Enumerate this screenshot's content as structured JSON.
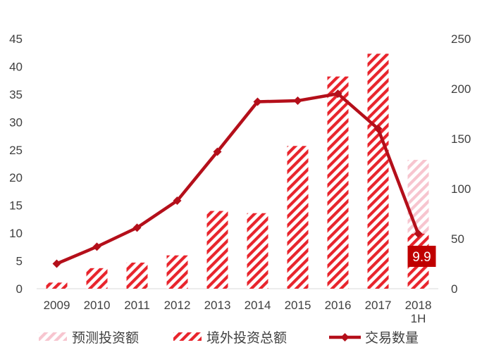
{
  "chart_data": {
    "type": "bar+line",
    "categories": [
      "2009",
      "2010",
      "2011",
      "2012",
      "2013",
      "2014",
      "2015",
      "2016",
      "2017",
      "2018\n1H"
    ],
    "series": [
      {
        "name": "预测投资额",
        "kind": "bar",
        "axis": "left",
        "values": [
          null,
          null,
          null,
          null,
          null,
          null,
          null,
          null,
          null,
          23.2
        ]
      },
      {
        "name": "境外投资总额",
        "kind": "bar",
        "axis": "left",
        "values": [
          1.1,
          3.7,
          4.7,
          6.0,
          14.0,
          13.6,
          25.7,
          38.2,
          42.3,
          9.9
        ]
      },
      {
        "name": "交易数量",
        "kind": "line",
        "axis": "right",
        "values": [
          25,
          42,
          61,
          88,
          137,
          187,
          188,
          195,
          160,
          55
        ]
      }
    ],
    "y_left": {
      "min": 0,
      "max": 45,
      "ticks": [
        0,
        5,
        10,
        15,
        20,
        25,
        30,
        35,
        40,
        45
      ]
    },
    "y_right": {
      "min": 0,
      "max": 250,
      "ticks": [
        0,
        50,
        100,
        150,
        200,
        250
      ]
    },
    "annotation": {
      "text": "9.9",
      "category_index": 9
    },
    "legend_position": "bottom",
    "colors": {
      "bar_hatch": "#e8242c",
      "forecast_hatch": "#f7c5cf",
      "line": "#b40f1a",
      "callout": "#c00000"
    }
  }
}
